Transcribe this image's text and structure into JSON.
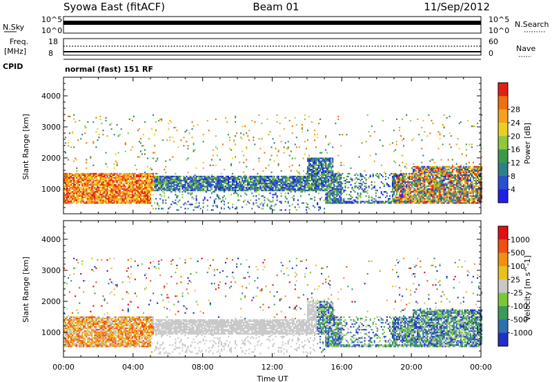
{
  "header": {
    "station": "Syowa East (fitACF)",
    "beam": "Beam 01",
    "date": "11/Sep/2012"
  },
  "top_panels": {
    "nsky_label": "N.Sky",
    "nsky_scale_top": "10^5",
    "nsky_scale_bottom": "10^0",
    "nsearch_label": "N.Search",
    "nsearch_scale_top": "10^5",
    "nsearch_scale_bottom": "10^0",
    "freq_label": "Freq.",
    "freq_unit": "[MHz]",
    "freq_ticks": [
      "18",
      "8"
    ],
    "nave_label": "Nave",
    "nave_ticks": [
      "60",
      "0"
    ],
    "cpid_label": "CPID",
    "cpid_text": "normal (fast) 151 RF"
  },
  "chart_data": [
    {
      "type": "heatmap",
      "title": "",
      "xlabel": "",
      "ylabel": "Slant Range [km]",
      "xlim": [
        0,
        24
      ],
      "ylim": [
        200,
        4600
      ],
      "x_ticks": [
        0,
        4,
        8,
        12,
        16,
        20,
        24
      ],
      "x_tick_labels": [
        "00:00",
        "04:00",
        "08:00",
        "12:00",
        "16:00",
        "20:00",
        "00:00"
      ],
      "y_ticks": [
        1000,
        2000,
        3000,
        4000
      ],
      "y_tick_labels": [
        "1000",
        "2000",
        "3000",
        "4000"
      ],
      "colorbar": {
        "label": "Power [dB]",
        "levels": [
          "4",
          "8",
          "12",
          "16",
          "20",
          "24",
          "28"
        ],
        "colors": [
          "#1f1fe8",
          "#2a4fd0",
          "#2f7f8a",
          "#3b9a4a",
          "#8fc83c",
          "#e8d020",
          "#f4a020",
          "#f07010",
          "#e02010"
        ]
      }
    },
    {
      "type": "heatmap",
      "title": "",
      "xlabel": "Time UT",
      "ylabel": "Slant Range [km]",
      "xlim": [
        0,
        24
      ],
      "ylim": [
        200,
        4600
      ],
      "x_ticks": [
        0,
        4,
        8,
        12,
        16,
        20,
        24
      ],
      "x_tick_labels": [
        "00:00",
        "04:00",
        "08:00",
        "12:00",
        "16:00",
        "20:00",
        "00:00"
      ],
      "y_ticks": [
        1000,
        2000,
        3000,
        4000
      ],
      "y_tick_labels": [
        "1000",
        "2000",
        "3000",
        "4000"
      ],
      "colorbar": {
        "label": "Velocity [m s^-1]",
        "levels": [
          "1000",
          "500",
          "100",
          "25",
          "-25",
          "-100",
          "-500",
          "-1000"
        ],
        "colors": [
          "#1f2fc8",
          "#2f6fb0",
          "#3a9a5a",
          "#7ac83a",
          "#c8c8c8",
          "#e8c020",
          "#f09010",
          "#f05010",
          "#e01010"
        ]
      }
    }
  ]
}
